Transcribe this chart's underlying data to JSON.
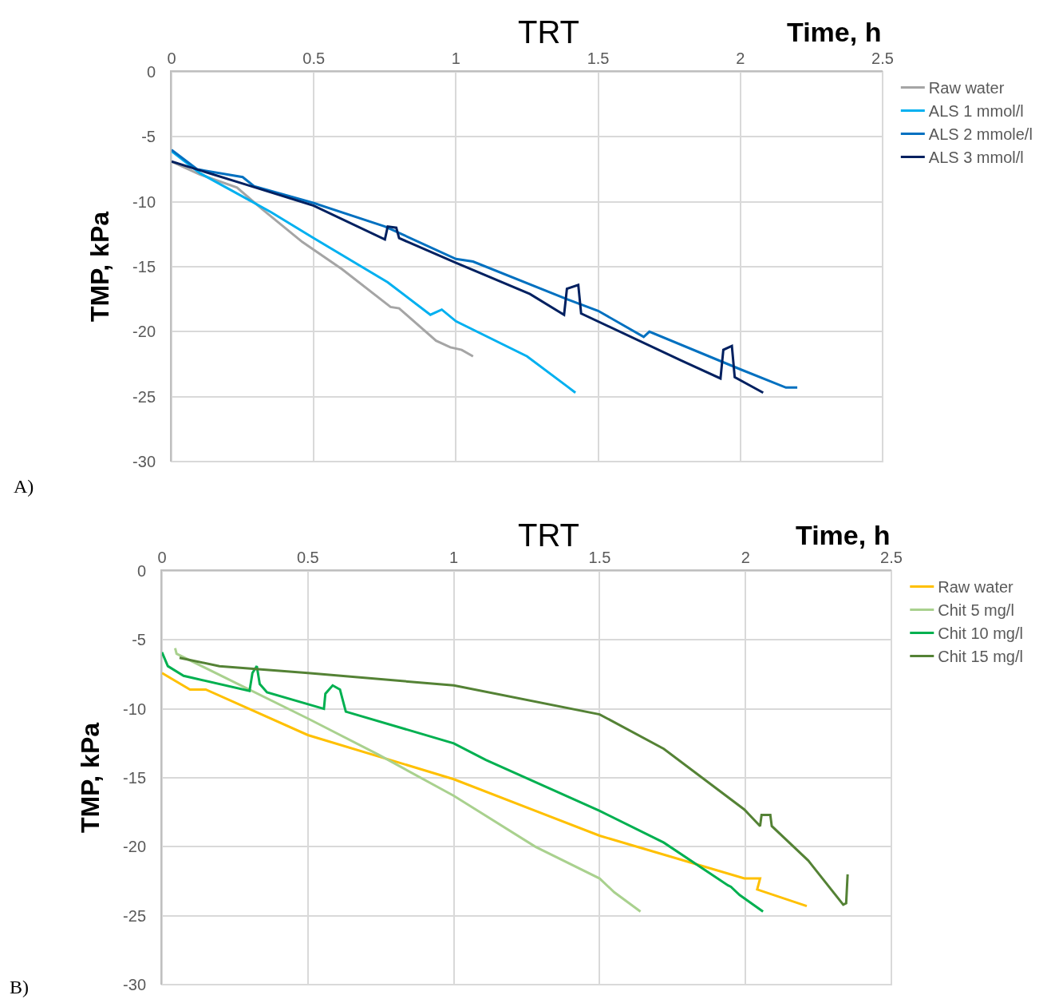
{
  "chart_data": [
    {
      "type": "line",
      "title": "TRT",
      "xlabel": "Time, h",
      "ylabel": "TMP, kPa",
      "annotations": [
        "A)"
      ],
      "xlim": [
        0,
        2.5
      ],
      "xticks": [
        0,
        0.5,
        1,
        1.5,
        2,
        2.5
      ],
      "ylim": [
        -30,
        0
      ],
      "yticks": [
        -30,
        -25,
        -20,
        -15,
        -10,
        -5,
        0
      ],
      "grid": true,
      "legend": "right",
      "marker": "none",
      "line_style": "solid",
      "series": [
        {
          "name": "Raw water",
          "color": "#a5a5a5",
          "x": [
            0,
            0.1,
            0.23,
            0.32,
            0.46,
            0.6,
            0.77,
            0.8,
            0.93,
            0.98,
            1.02,
            1.06
          ],
          "values": [
            -6.9,
            -7.9,
            -8.9,
            -10.6,
            -13.1,
            -15.2,
            -18.1,
            -18.2,
            -20.7,
            -21.2,
            -21.4,
            -21.9
          ]
        },
        {
          "name": "ALS 1 mmol/l",
          "color": "#00b0f0",
          "x": [
            0,
            0.1,
            0.2,
            0.35,
            0.5,
            0.76,
            0.91,
            0.95,
            1.0,
            1.25,
            1.39,
            1.42
          ],
          "values": [
            -6.1,
            -7.8,
            -9.0,
            -10.8,
            -12.8,
            -16.2,
            -18.7,
            -18.3,
            -19.2,
            -21.9,
            -24.2,
            -24.7
          ]
        },
        {
          "name": "ALS 2 mmole/l",
          "color": "#0070c0",
          "x": [
            0,
            0.09,
            0.25,
            0.29,
            0.5,
            0.75,
            1.0,
            1.06,
            1.39,
            1.5,
            1.66,
            1.68,
            2.0,
            2.16,
            2.2
          ],
          "values": [
            -6.0,
            -7.5,
            -8.1,
            -8.8,
            -10.1,
            -11.9,
            -14.4,
            -14.6,
            -17.5,
            -18.4,
            -20.4,
            -20.0,
            -22.9,
            -24.3,
            -24.3
          ]
        },
        {
          "name": "ALS 3 mmol/l",
          "color": "#002060",
          "x": [
            0,
            0.25,
            0.5,
            0.75,
            0.76,
            0.79,
            0.8,
            1.0,
            1.26,
            1.38,
            1.39,
            1.43,
            1.44,
            1.79,
            1.93,
            1.94,
            1.97,
            1.98,
            2.08
          ],
          "values": [
            -6.9,
            -8.6,
            -10.3,
            -12.9,
            -11.9,
            -12.0,
            -12.8,
            -14.7,
            -17.1,
            -18.7,
            -16.7,
            -16.4,
            -18.6,
            -22.2,
            -23.6,
            -21.4,
            -21.1,
            -23.5,
            -24.7
          ]
        }
      ]
    },
    {
      "type": "line",
      "title": "TRT",
      "xlabel": "Time, h",
      "ylabel": "TMP, kPa",
      "annotations": [
        "B)"
      ],
      "xlim": [
        0,
        2.5
      ],
      "xticks": [
        0,
        0.5,
        1,
        1.5,
        2,
        2.5
      ],
      "ylim": [
        -30,
        0
      ],
      "yticks": [
        -30,
        -25,
        -20,
        -15,
        -10,
        -5,
        0
      ],
      "grid": true,
      "legend": "right",
      "marker": "none",
      "line_style": "solid",
      "series": [
        {
          "name": "Raw water",
          "color": "#ffc000",
          "x": [
            0,
            0.096,
            0.15,
            0.5,
            1.0,
            1.5,
            1.996,
            2.05,
            2.04,
            2.21
          ],
          "values": [
            -7.4,
            -8.6,
            -8.6,
            -11.9,
            -15.1,
            -19.2,
            -22.3,
            -22.3,
            -23.1,
            -24.3
          ]
        },
        {
          "name": "Chit 5 mg/l",
          "color": "#a9d18e",
          "x": [
            0.045,
            0.05,
            0.5,
            0.74,
            1.0,
            1.28,
            1.5,
            1.55,
            1.64
          ],
          "values": [
            -5.6,
            -6.0,
            -10.7,
            -13.3,
            -16.3,
            -20.0,
            -22.3,
            -23.3,
            -24.7
          ]
        },
        {
          "name": "Chit 10 mg/l",
          "color": "#00b050",
          "x": [
            0,
            0.02,
            0.074,
            0.3,
            0.31,
            0.325,
            0.335,
            0.36,
            0.555,
            0.56,
            0.585,
            0.61,
            0.63,
            1.0,
            1.11,
            1.5,
            1.72,
            1.94,
            1.95,
            1.98,
            2.06
          ],
          "values": [
            -5.9,
            -6.9,
            -7.6,
            -8.7,
            -7.4,
            -6.9,
            -8.2,
            -8.8,
            -10.0,
            -8.9,
            -8.3,
            -8.6,
            -10.2,
            -12.5,
            -13.7,
            -17.4,
            -19.7,
            -22.8,
            -22.9,
            -23.5,
            -24.7
          ]
        },
        {
          "name": "Chit 15 mg/l",
          "color": "#548235",
          "x": [
            0.06,
            0.197,
            0.5,
            1.0,
            1.5,
            1.72,
            1.996,
            2.05,
            2.055,
            2.085,
            2.09,
            2.215,
            2.335,
            2.345,
            2.35
          ],
          "values": [
            -6.3,
            -6.9,
            -7.4,
            -8.3,
            -10.4,
            -12.9,
            -17.3,
            -18.5,
            -17.7,
            -17.7,
            -18.5,
            -21.0,
            -24.2,
            -24.1,
            -22.0
          ]
        }
      ]
    }
  ]
}
